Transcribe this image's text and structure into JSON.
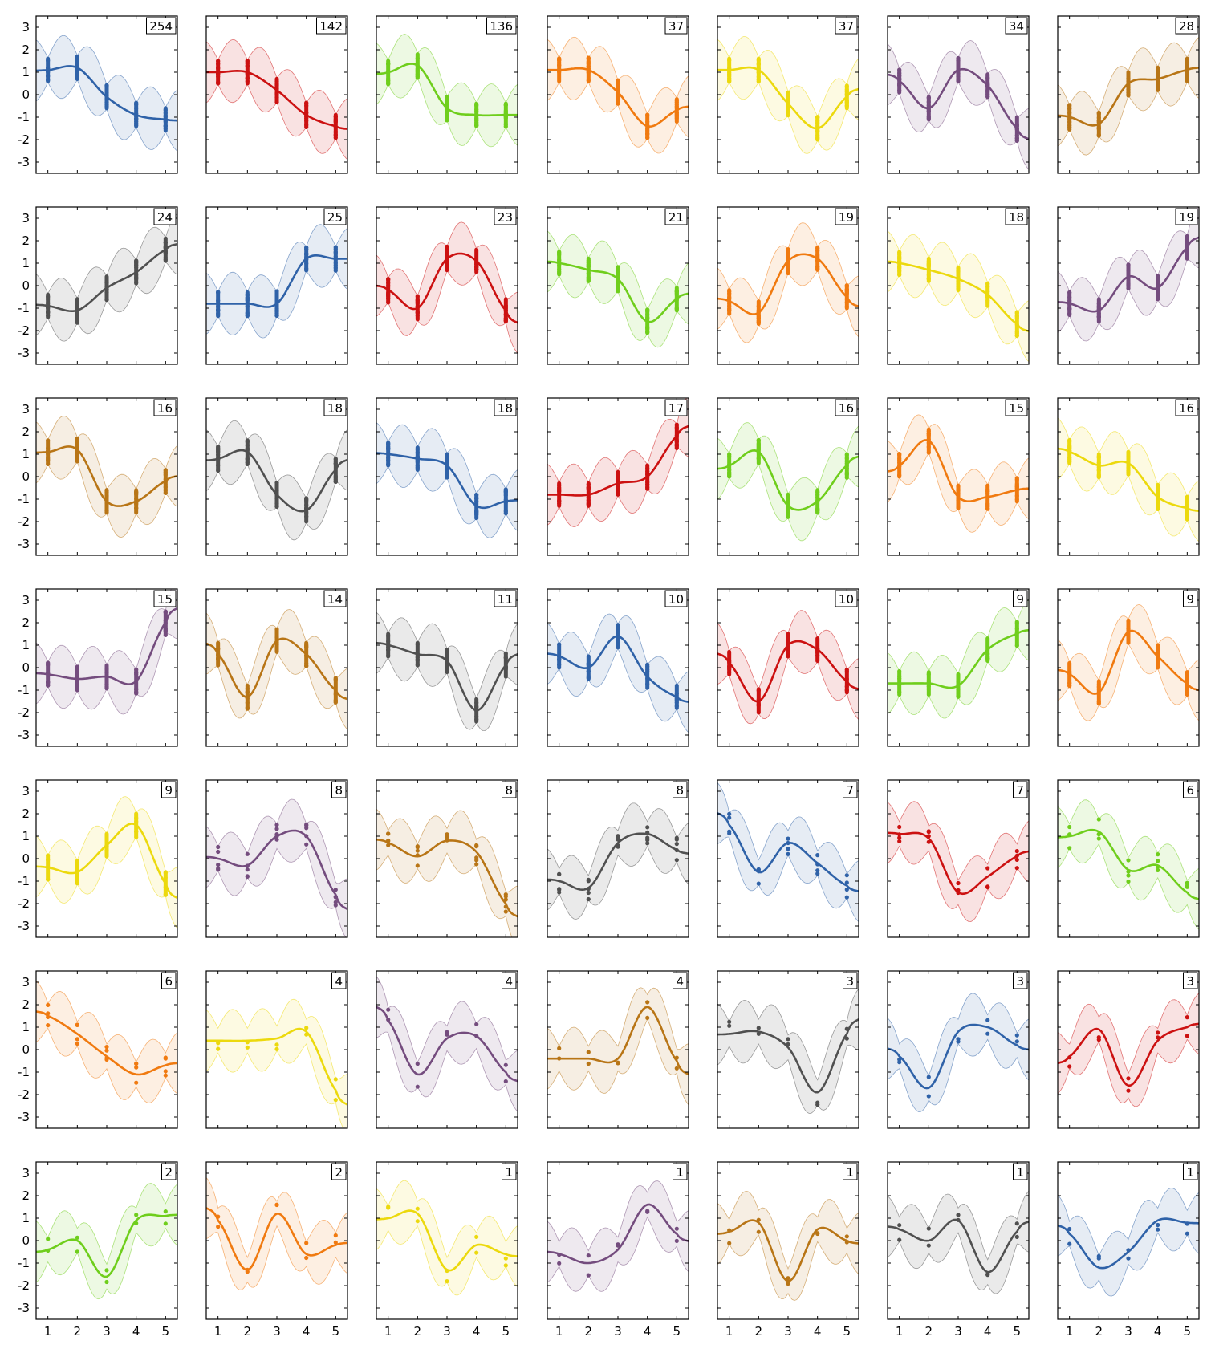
{
  "chart_data": {
    "type": "line",
    "layout": {
      "rows": 7,
      "cols": 7
    },
    "xlim": [
      0.6,
      5.4
    ],
    "ylim": [
      -3.5,
      3.5
    ],
    "xticks": [
      1,
      2,
      3,
      4,
      5
    ],
    "yticks": [
      -3,
      -2,
      -1,
      0,
      1,
      2,
      3
    ],
    "x": [
      1,
      2,
      3,
      4,
      5
    ],
    "palette": {
      "blue": "#2f62a8",
      "red": "#cc1111",
      "green": "#6fce1c",
      "orange": "#f07a10",
      "yellow": "#ecd90d",
      "purple": "#744c7e",
      "brown": "#b87516",
      "gray": "#505050"
    },
    "panels": [
      {
        "count": "254",
        "color": "blue",
        "values": [
          1.1,
          1.2,
          -0.1,
          -0.9,
          -1.1
        ]
      },
      {
        "count": "142",
        "color": "red",
        "values": [
          1.0,
          1.0,
          0.2,
          -0.9,
          -1.4
        ]
      },
      {
        "count": "136",
        "color": "green",
        "values": [
          1.0,
          1.3,
          -0.6,
          -0.9,
          -0.9
        ]
      },
      {
        "count": "37",
        "color": "orange",
        "values": [
          1.1,
          1.1,
          0.1,
          -1.4,
          -0.7
        ]
      },
      {
        "count": "37",
        "color": "yellow",
        "values": [
          1.1,
          1.1,
          -0.4,
          -1.5,
          -0.1
        ]
      },
      {
        "count": "34",
        "color": "purple",
        "values": [
          0.6,
          -0.6,
          1.1,
          0.4,
          -1.5
        ]
      },
      {
        "count": "28",
        "color": "brown",
        "values": [
          -1.0,
          -1.3,
          0.5,
          0.7,
          1.1
        ]
      },
      {
        "count": "24",
        "color": "gray",
        "values": [
          -0.9,
          -1.1,
          -0.1,
          0.6,
          1.6
        ]
      },
      {
        "count": "25",
        "color": "blue",
        "values": [
          -0.8,
          -0.8,
          -0.8,
          1.2,
          1.2
        ]
      },
      {
        "count": "23",
        "color": "red",
        "values": [
          -0.2,
          -1.0,
          1.2,
          1.1,
          -1.1
        ]
      },
      {
        "count": "21",
        "color": "green",
        "values": [
          1.0,
          0.7,
          0.3,
          -1.6,
          -0.6
        ]
      },
      {
        "count": "19",
        "color": "orange",
        "values": [
          -0.7,
          -1.2,
          1.1,
          1.2,
          -0.5
        ]
      },
      {
        "count": "18",
        "color": "yellow",
        "values": [
          1.0,
          0.7,
          0.3,
          -0.4,
          -1.7
        ]
      },
      {
        "count": "19",
        "color": "purple",
        "values": [
          -0.8,
          -1.1,
          0.4,
          -0.1,
          1.7
        ]
      },
      {
        "count": "16",
        "color": "brown",
        "values": [
          1.1,
          1.2,
          -1.1,
          -1.1,
          -0.2
        ]
      },
      {
        "count": "18",
        "color": "gray",
        "values": [
          0.8,
          1.1,
          -0.8,
          -1.5,
          0.3
        ]
      },
      {
        "count": "18",
        "color": "blue",
        "values": [
          1.0,
          0.8,
          0.5,
          -1.3,
          -1.1
        ]
      },
      {
        "count": "17",
        "color": "red",
        "values": [
          -0.8,
          -0.8,
          -0.3,
          0.0,
          1.8
        ]
      },
      {
        "count": "16",
        "color": "green",
        "values": [
          0.5,
          1.1,
          -1.3,
          -1.1,
          0.5
        ]
      },
      {
        "count": "15",
        "color": "orange",
        "values": [
          0.5,
          1.6,
          -0.9,
          -0.9,
          -0.6
        ]
      },
      {
        "count": "16",
        "color": "yellow",
        "values": [
          1.1,
          0.5,
          0.6,
          -0.9,
          -1.4
        ]
      },
      {
        "count": "15",
        "color": "purple",
        "values": [
          -0.3,
          -0.5,
          -0.4,
          -0.6,
          2.0
        ]
      },
      {
        "count": "14",
        "color": "brown",
        "values": [
          0.6,
          -1.3,
          1.2,
          0.6,
          -1.0
        ]
      },
      {
        "count": "11",
        "color": "gray",
        "values": [
          1.0,
          0.6,
          0.3,
          -1.9,
          0.1
        ]
      },
      {
        "count": "10",
        "color": "blue",
        "values": [
          0.5,
          0.0,
          1.4,
          -0.4,
          -1.3
        ]
      },
      {
        "count": "10",
        "color": "red",
        "values": [
          0.2,
          -1.5,
          1.0,
          0.8,
          -0.6
        ]
      },
      {
        "count": "9",
        "color": "green",
        "values": [
          -0.7,
          -0.7,
          -0.8,
          0.8,
          1.5
        ]
      },
      {
        "count": "9",
        "color": "orange",
        "values": [
          -0.3,
          -1.1,
          1.6,
          0.5,
          -0.7
        ]
      },
      {
        "count": "9",
        "color": "yellow",
        "values": [
          -0.4,
          -0.6,
          0.6,
          1.5,
          -1.1
        ]
      },
      {
        "count": "8",
        "color": "purple",
        "values": [
          0.0,
          -0.3,
          1.0,
          1.0,
          -1.6
        ]
      },
      {
        "count": "8",
        "color": "brown",
        "values": [
          0.7,
          0.1,
          0.8,
          0.3,
          -2.0
        ]
      },
      {
        "count": "8",
        "color": "gray",
        "values": [
          -1.0,
          -1.3,
          0.7,
          1.1,
          0.4
        ]
      },
      {
        "count": "7",
        "color": "blue",
        "values": [
          1.5,
          -0.6,
          0.7,
          -0.2,
          -1.2
        ]
      },
      {
        "count": "7",
        "color": "red",
        "values": [
          1.1,
          0.9,
          -1.5,
          -0.8,
          0.1
        ]
      },
      {
        "count": "6",
        "color": "green",
        "values": [
          1.0,
          1.2,
          -0.5,
          -0.3,
          -1.5
        ]
      },
      {
        "count": "6",
        "color": "orange",
        "values": [
          1.5,
          0.7,
          -0.3,
          -1.1,
          -0.7
        ]
      },
      {
        "count": "4",
        "color": "yellow",
        "values": [
          0.4,
          0.4,
          0.5,
          0.8,
          -1.8
        ]
      },
      {
        "count": "4",
        "color": "purple",
        "values": [
          1.3,
          -1.1,
          0.5,
          0.6,
          -1.0
        ]
      },
      {
        "count": "4",
        "color": "brown",
        "values": [
          -0.4,
          -0.4,
          -0.4,
          1.9,
          -0.5
        ]
      },
      {
        "count": "3",
        "color": "gray",
        "values": [
          0.7,
          0.8,
          0.1,
          -1.9,
          0.7
        ]
      },
      {
        "count": "3",
        "color": "blue",
        "values": [
          -0.3,
          -1.7,
          0.8,
          1.0,
          0.2
        ]
      },
      {
        "count": "3",
        "color": "red",
        "values": [
          -0.3,
          0.9,
          -1.6,
          0.4,
          1.0
        ]
      },
      {
        "count": "2",
        "color": "green",
        "values": [
          -0.4,
          0.0,
          -1.6,
          0.9,
          1.1
        ]
      },
      {
        "count": "2",
        "color": "orange",
        "values": [
          0.9,
          -1.3,
          1.2,
          -0.6,
          -0.2
        ]
      },
      {
        "count": "1",
        "color": "yellow",
        "values": [
          1.0,
          1.2,
          -1.3,
          -0.2,
          -0.6
        ]
      },
      {
        "count": "1",
        "color": "purple",
        "values": [
          -0.6,
          -1.0,
          -0.4,
          1.6,
          0.3
        ]
      },
      {
        "count": "1",
        "color": "brown",
        "values": [
          0.4,
          0.8,
          -1.8,
          0.5,
          0.0
        ]
      },
      {
        "count": "1",
        "color": "gray",
        "values": [
          0.5,
          0.0,
          0.9,
          -1.4,
          0.4
        ]
      },
      {
        "count": "1",
        "color": "blue",
        "values": [
          0.3,
          -1.2,
          -0.5,
          0.9,
          0.8
        ]
      }
    ]
  }
}
